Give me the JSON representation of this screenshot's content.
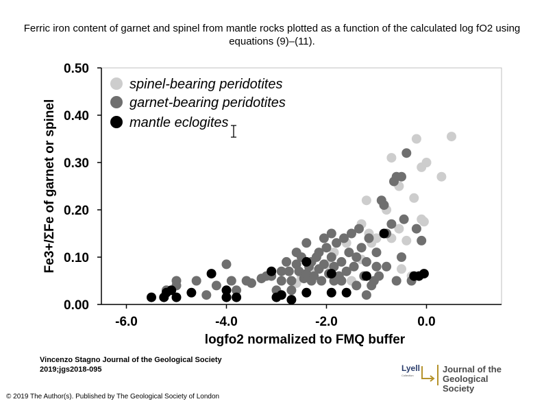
{
  "title": "Ferric iron content of garnet and spinel from mantle rocks plotted as a function of the calculated log fO2 using equations (9)–(11).",
  "citation": {
    "line1": "Vincenzo Stagno Journal of the Geological Society",
    "line2": "2019;jgs2018-095"
  },
  "copyright": "© 2019 The Author(s). Published by The Geological Society of London",
  "logos": {
    "lyell_main": "Lyell",
    "lyell_sub": "Collection",
    "journal_line1": "Journal of the",
    "journal_line2": "Geological Society"
  },
  "colors": {
    "spinel": "#cdcdcd",
    "garnet": "#6f6f6f",
    "eclogite": "#000000",
    "brand_blue": "#2a3d6b",
    "brand_gold": "#b5922b"
  },
  "chart_data": {
    "type": "scatter",
    "title": "",
    "xlabel": "logfo2 normalized to FMQ buffer",
    "ylabel": "Fe3+/ΣFe of garnet or spinel",
    "xlim": [
      -6.5,
      1.5
    ],
    "ylim": [
      0.0,
      0.5
    ],
    "xticks": [
      "-6.0",
      "-4.0",
      "-2.0",
      "0.0"
    ],
    "xtick_values": [
      -6.0,
      -4.0,
      -2.0,
      0.0
    ],
    "yticks": [
      "0.00",
      "0.10",
      "0.20",
      "0.30",
      "0.40",
      "0.50"
    ],
    "ytick_values": [
      0.0,
      0.1,
      0.2,
      0.3,
      0.4,
      0.5
    ],
    "legend_position": "top-left",
    "series": [
      {
        "name": "spinel-bearing peridotites",
        "points": [
          [
            0.5,
            0.355
          ],
          [
            -0.2,
            0.35
          ],
          [
            -0.7,
            0.31
          ],
          [
            -0.1,
            0.29
          ],
          [
            -0.6,
            0.27
          ],
          [
            -0.55,
            0.25
          ],
          [
            0.3,
            0.27
          ],
          [
            -0.25,
            0.225
          ],
          [
            -1.2,
            0.22
          ],
          [
            -0.8,
            0.2
          ],
          [
            -0.55,
            0.16
          ],
          [
            -0.7,
            0.14
          ],
          [
            -0.4,
            0.135
          ],
          [
            -0.1,
            0.18
          ],
          [
            -0.05,
            0.175
          ],
          [
            -1.3,
            0.17
          ],
          [
            -1.15,
            0.15
          ],
          [
            -1.0,
            0.14
          ],
          [
            -1.6,
            0.13
          ],
          [
            -1.85,
            0.11
          ],
          [
            -1.3,
            0.095
          ],
          [
            -2.0,
            0.085
          ],
          [
            -2.3,
            0.07
          ],
          [
            -2.5,
            0.06
          ],
          [
            -2.6,
            0.045
          ],
          [
            -1.5,
            0.05
          ],
          [
            -0.5,
            0.075
          ],
          [
            -0.3,
            0.06
          ],
          [
            0.0,
            0.3
          ],
          [
            -1.1,
            0.13
          ]
        ]
      },
      {
        "name": "garnet-bearing peridotites",
        "points": [
          [
            -5.0,
            0.04
          ],
          [
            -5.0,
            0.05
          ],
          [
            -4.6,
            0.05
          ],
          [
            -4.2,
            0.04
          ],
          [
            -4.0,
            0.085
          ],
          [
            -3.9,
            0.05
          ],
          [
            -3.8,
            0.03
          ],
          [
            -3.5,
            0.045
          ],
          [
            -3.3,
            0.055
          ],
          [
            -3.1,
            0.06
          ],
          [
            -3.0,
            0.03
          ],
          [
            -2.9,
            0.05
          ],
          [
            -2.8,
            0.09
          ],
          [
            -2.75,
            0.07
          ],
          [
            -2.7,
            0.05
          ],
          [
            -2.6,
            0.085
          ],
          [
            -2.55,
            0.07
          ],
          [
            -2.5,
            0.1
          ],
          [
            -2.45,
            0.055
          ],
          [
            -2.4,
            0.065
          ],
          [
            -2.35,
            0.08
          ],
          [
            -2.3,
            0.09
          ],
          [
            -2.25,
            0.06
          ],
          [
            -2.2,
            0.1
          ],
          [
            -2.15,
            0.075
          ],
          [
            -2.1,
            0.05
          ],
          [
            -2.05,
            0.085
          ],
          [
            -2.0,
            0.12
          ],
          [
            -1.95,
            0.065
          ],
          [
            -1.9,
            0.1
          ],
          [
            -1.85,
            0.08
          ],
          [
            -1.8,
            0.13
          ],
          [
            -1.75,
            0.06
          ],
          [
            -1.7,
            0.09
          ],
          [
            -1.65,
            0.14
          ],
          [
            -1.6,
            0.07
          ],
          [
            -1.55,
            0.11
          ],
          [
            -1.5,
            0.15
          ],
          [
            -1.45,
            0.08
          ],
          [
            -1.4,
            0.1
          ],
          [
            -1.35,
            0.16
          ],
          [
            -1.3,
            0.12
          ],
          [
            -1.25,
            0.06
          ],
          [
            -1.2,
            0.09
          ],
          [
            -1.15,
            0.14
          ],
          [
            -1.1,
            0.04
          ],
          [
            -1.05,
            0.05
          ],
          [
            -1.0,
            0.11
          ],
          [
            -0.95,
            0.06
          ],
          [
            -0.9,
            0.22
          ],
          [
            -0.85,
            0.21
          ],
          [
            -0.8,
            0.08
          ],
          [
            -0.7,
            0.17
          ],
          [
            -0.65,
            0.26
          ],
          [
            -0.6,
            0.27
          ],
          [
            -0.5,
            0.27
          ],
          [
            -0.45,
            0.18
          ],
          [
            -0.4,
            0.32
          ],
          [
            -0.3,
            0.05
          ],
          [
            -0.2,
            0.16
          ],
          [
            -0.1,
            0.135
          ],
          [
            -0.6,
            0.05
          ],
          [
            -0.5,
            0.1
          ],
          [
            -0.8,
            0.15
          ],
          [
            -1.0,
            0.08
          ],
          [
            -1.2,
            0.02
          ],
          [
            -1.4,
            0.04
          ],
          [
            -1.7,
            0.05
          ],
          [
            -2.6,
            0.11
          ],
          [
            -2.4,
            0.13
          ],
          [
            -2.05,
            0.14
          ],
          [
            -1.9,
            0.15
          ],
          [
            -1.85,
            0.05
          ],
          [
            -2.15,
            0.11
          ],
          [
            -2.3,
            0.05
          ],
          [
            -2.7,
            0.03
          ],
          [
            -2.9,
            0.07
          ],
          [
            -3.2,
            0.06
          ],
          [
            -3.6,
            0.05
          ],
          [
            -4.4,
            0.02
          ],
          [
            -5.2,
            0.03
          ]
        ]
      },
      {
        "name": "mantle eclogites",
        "points": [
          [
            -5.5,
            0.015
          ],
          [
            -5.25,
            0.015
          ],
          [
            -5.2,
            0.025
          ],
          [
            -5.1,
            0.03
          ],
          [
            -5.0,
            0.015
          ],
          [
            -4.7,
            0.025
          ],
          [
            -4.3,
            0.065
          ],
          [
            -4.0,
            0.03
          ],
          [
            -4.0,
            0.015
          ],
          [
            -3.8,
            0.015
          ],
          [
            -3.1,
            0.07
          ],
          [
            -3.0,
            0.015
          ],
          [
            -2.9,
            0.02
          ],
          [
            -2.7,
            0.01
          ],
          [
            -2.4,
            0.09
          ],
          [
            -2.4,
            0.025
          ],
          [
            -1.9,
            0.065
          ],
          [
            -1.9,
            0.025
          ],
          [
            -1.6,
            0.025
          ],
          [
            -1.2,
            0.06
          ],
          [
            -0.85,
            0.15
          ],
          [
            -0.25,
            0.06
          ],
          [
            -0.15,
            0.06
          ],
          [
            -0.05,
            0.065
          ]
        ]
      }
    ]
  }
}
